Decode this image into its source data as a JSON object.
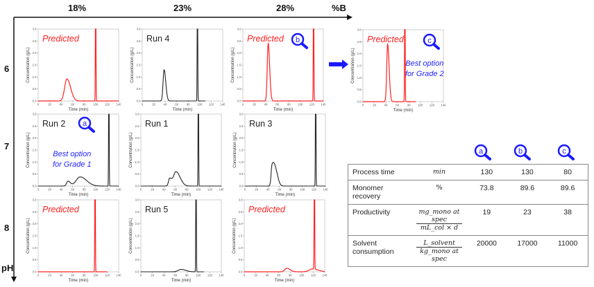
{
  "axes": {
    "x_title": "%B",
    "y_title": "pH",
    "b_levels": [
      "18%",
      "23%",
      "28%"
    ],
    "ph_levels": [
      "6",
      "7",
      "8"
    ]
  },
  "colors": {
    "predicted": "#ff2020",
    "run": "#222222",
    "accent": "#1a1aff"
  },
  "annotations": {
    "grade1": [
      "Best option",
      "for Grade 1"
    ],
    "grade2": [
      "Best option",
      "for Grade 2"
    ],
    "markers": [
      "a",
      "b",
      "c"
    ]
  },
  "chart_data": [
    {
      "type": "line",
      "id": "pH6-18",
      "label": "Predicted",
      "kind": "predicted",
      "xlabel": "Time (min)",
      "ylabel": "Concentration (g/L)",
      "xlim": [
        0,
        140
      ],
      "ylim": [
        0,
        3.0
      ],
      "xticks": [
        0,
        20,
        40,
        60,
        80,
        100,
        120,
        140
      ],
      "yticks": [
        0.0,
        0.5,
        1.0,
        1.5,
        2.0,
        2.5,
        3.0
      ],
      "x_end": 140,
      "peaks": [
        {
          "time": 50,
          "conc": 0.92,
          "width": 4
        }
      ],
      "strip_peak": {
        "time": 100,
        "conc_off_scale": true
      }
    },
    {
      "type": "line",
      "id": "pH6-23",
      "label": "Run 4",
      "kind": "run",
      "xlabel": "Time (min)",
      "ylabel": "Concentration (g/L)",
      "xlim": [
        0,
        140
      ],
      "ylim": [
        0,
        3.0
      ],
      "xticks": [
        0,
        20,
        40,
        60,
        80,
        100,
        120,
        140
      ],
      "yticks": [
        0.0,
        0.5,
        1.0,
        1.5,
        2.0,
        2.5,
        3.0
      ],
      "x_end": 110,
      "peaks": [
        {
          "time": 38,
          "conc": 1.3,
          "width": 1.8
        }
      ],
      "strip_peak": {
        "time": 96,
        "conc_off_scale": true
      }
    },
    {
      "type": "line",
      "id": "pH6-28",
      "label": "Predicted",
      "kind": "predicted",
      "marker": "b",
      "xlabel": "Time (min)",
      "ylabel": "Concentration (g/L)",
      "xlim": [
        0,
        140
      ],
      "ylim": [
        0,
        3.0
      ],
      "xticks": [
        0,
        20,
        40,
        60,
        80,
        100,
        120,
        140
      ],
      "yticks": [
        0.0,
        0.5,
        1.0,
        1.5,
        2.0,
        2.5,
        3.0
      ],
      "x_end": 140,
      "peaks": [
        {
          "time": 44,
          "conc": 2.4,
          "width": 1.6
        }
      ],
      "strip_peak": {
        "time": 123,
        "conc_off_scale": true
      }
    },
    {
      "type": "line",
      "id": "optimized",
      "label": "Predicted",
      "kind": "predicted",
      "marker": "c",
      "xlabel": "Time (min)",
      "ylabel": "Concentration (g/L)",
      "xlim": [
        0,
        140
      ],
      "ylim": [
        0,
        3.0
      ],
      "xticks": [
        0,
        20,
        40,
        60,
        80,
        100,
        120,
        140
      ],
      "yticks": [
        0.0,
        0.5,
        1.0,
        1.5,
        2.0,
        2.5,
        3.0
      ],
      "x_end": 92,
      "peaks": [
        {
          "time": 43,
          "conc": 2.4,
          "width": 1.6
        }
      ],
      "strip_peak": {
        "time": 73,
        "conc_off_scale": true
      }
    },
    {
      "type": "line",
      "id": "pH7-18",
      "label": "Run 2",
      "kind": "run",
      "marker": "a",
      "xlabel": "Time (min)",
      "ylabel": "Concentration (g/L)",
      "xlim": [
        0,
        140
      ],
      "ylim": [
        0,
        3.0
      ],
      "xticks": [
        0,
        20,
        40,
        60,
        80,
        100,
        120,
        140
      ],
      "yticks": [
        0.0,
        0.5,
        1.0,
        1.5,
        2.0,
        2.5,
        3.0
      ],
      "x_end": 140,
      "peaks": [
        {
          "time": 52,
          "conc": 0.2,
          "width": 2.5
        },
        {
          "time": 73,
          "conc": 0.38,
          "width": 7
        }
      ],
      "strip_peak": {
        "time": 123,
        "conc_off_scale": true
      }
    },
    {
      "type": "line",
      "id": "pH7-23",
      "label": "Run 1",
      "kind": "run",
      "xlabel": "Time (min)",
      "ylabel": "Concentration (g/L)",
      "xlim": [
        0,
        140
      ],
      "ylim": [
        0,
        3.0
      ],
      "xticks": [
        0,
        20,
        40,
        60,
        80,
        100,
        120,
        140
      ],
      "yticks": [
        0.0,
        0.5,
        1.0,
        1.5,
        2.0,
        2.5,
        3.0
      ],
      "x_end": 140,
      "peaks": [
        {
          "time": 50,
          "conc": 0.3,
          "width": 2
        },
        {
          "time": 61,
          "conc": 0.6,
          "width": 4.5
        }
      ],
      "strip_peak": {
        "time": 100,
        "conc_off_scale": true
      }
    },
    {
      "type": "line",
      "id": "pH7-28",
      "label": "Run 3",
      "kind": "run",
      "xlabel": "Time (min)",
      "ylabel": "Concentration (g/L)",
      "xlim": [
        0,
        140
      ],
      "ylim": [
        0,
        3.0
      ],
      "xticks": [
        0,
        20,
        40,
        60,
        80,
        100,
        120,
        140
      ],
      "yticks": [
        0.0,
        0.5,
        1.0,
        1.5,
        2.0,
        2.5,
        3.0
      ],
      "x_end": 140,
      "peaks": [
        {
          "time": 47,
          "conc": 0.74,
          "width": 1.6
        },
        {
          "time": 52,
          "conc": 0.78,
          "width": 2.8
        }
      ],
      "strip_peak": {
        "time": 123,
        "conc_off_scale": true
      }
    },
    {
      "type": "line",
      "id": "pH8-18",
      "label": "Predicted",
      "kind": "predicted",
      "xlabel": "Time (min)",
      "ylabel": "Concentration (g/L)",
      "xlim": [
        0,
        140
      ],
      "ylim": [
        0,
        3.0
      ],
      "xticks": [
        0,
        20,
        40,
        60,
        80,
        100,
        120,
        140
      ],
      "yticks": [
        0.0,
        0.5,
        1.0,
        1.5,
        2.0,
        2.5,
        3.0
      ],
      "x_end": 120,
      "peaks": [],
      "strip_peak": {
        "time": 99,
        "conc_off_scale": true
      }
    },
    {
      "type": "line",
      "id": "pH8-23",
      "label": "Run 5",
      "kind": "run",
      "xlabel": "Time (min)",
      "ylabel": "Concentration (g/L)",
      "xlim": [
        0,
        140
      ],
      "ylim": [
        0,
        3.0
      ],
      "xticks": [
        0,
        20,
        40,
        60,
        80,
        100,
        120,
        140
      ],
      "yticks": [
        0.0,
        0.5,
        1.0,
        1.5,
        2.0,
        2.5,
        3.0
      ],
      "x_end": 110,
      "peaks": [
        {
          "time": 70,
          "conc": 0.1,
          "width": 5
        }
      ],
      "strip_peak": {
        "time": 96,
        "conc_off_scale": true
      }
    },
    {
      "type": "line",
      "id": "pH8-28",
      "label": "Predicted",
      "kind": "predicted",
      "xlabel": "Time (min)",
      "ylabel": "Concentration (g/L)",
      "xlim": [
        0,
        140
      ],
      "ylim": [
        0,
        3.0
      ],
      "xticks": [
        0,
        20,
        40,
        60,
        80,
        100,
        120,
        140
      ],
      "yticks": [
        0.0,
        0.5,
        1.0,
        1.5,
        2.0,
        2.5,
        3.0
      ],
      "x_end": 140,
      "peaks": [
        {
          "time": 74,
          "conc": 0.15,
          "width": 3.5
        },
        {
          "time": 119,
          "conc": 0.12,
          "width": 6
        }
      ],
      "strip_peak": {
        "time": 122,
        "conc_off_scale": true
      }
    }
  ],
  "table": {
    "markers": [
      "a",
      "b",
      "c"
    ],
    "rows": [
      {
        "label": "Process time",
        "unit": "min",
        "values": [
          "130",
          "130",
          "80"
        ]
      },
      {
        "label": "Monomer recovery",
        "unit": "%",
        "values": [
          "73.8",
          "89.6",
          "89.6"
        ]
      },
      {
        "label": "Productivity",
        "unit_num": "mg_mono at spec",
        "unit_den": "mL_col × d",
        "values": [
          "19",
          "23",
          "38"
        ]
      },
      {
        "label": "Solvent consumption",
        "unit_num": "L_solvent",
        "unit_den": "kg_mono at spec",
        "values": [
          "20000",
          "17000",
          "11000"
        ]
      }
    ]
  }
}
